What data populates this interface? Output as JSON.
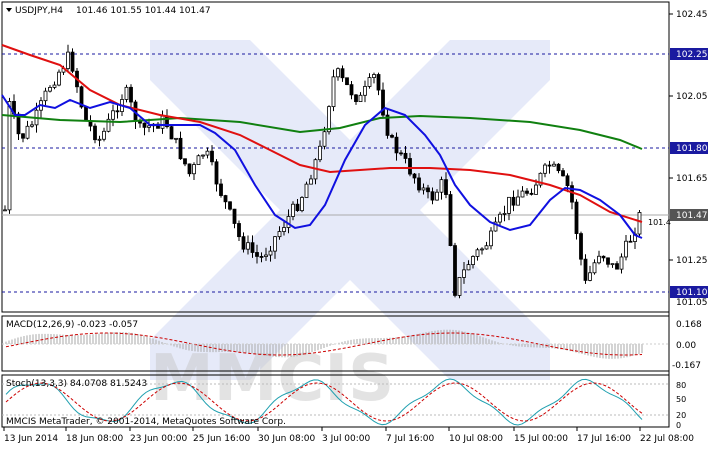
{
  "header": {
    "symbol_label": "USDJPY,H4",
    "ohlc": "101.46 101.55 101.44 101.47"
  },
  "price_axis": {
    "ticks": [
      "102.45",
      "102.05",
      "101.65",
      "101.25",
      "101.05"
    ],
    "markers": [
      {
        "label": "102.25",
        "color": "#1a1aa0"
      },
      {
        "label": "101.80",
        "color": "#1a1aa0"
      },
      {
        "label": "101.47",
        "color": "#555555"
      },
      {
        "label": "101.10",
        "color": "#1a1aa0"
      }
    ],
    "partial_tick": "101.4",
    "bottom_label": "101.05"
  },
  "macd": {
    "title": "MACD(12,26,9) -0.023 -0.057",
    "ticks": [
      "0.168",
      "0.00",
      "-0.167"
    ]
  },
  "stoch": {
    "title": "Stoch(13,3,3) 84.0708 81.5243",
    "ticks": [
      "80",
      "50",
      "20",
      "0"
    ]
  },
  "footer": {
    "copyright": "MMCIS MetaTrader, © 2001-2014, MetaQuotes Software Corp."
  },
  "time_axis": {
    "labels": [
      "13 Jun 2014",
      "18 Jun 08:00",
      "23 Jun 00:00",
      "25 Jun 16:00",
      "30 Jun 08:00",
      "3 Jul 00:00",
      "7 Jul 16:00",
      "10 Jul 08:00",
      "15 Jul 00:00",
      "17 Jul 16:00",
      "22 Jul 08:00"
    ]
  },
  "watermark": {
    "text": "MMCIS"
  },
  "colors": {
    "candle": "#000000",
    "ma_red": "#e01010",
    "ma_blue": "#1010e0",
    "ma_green": "#108010",
    "level_line": "#1a1aa0",
    "macd_signal": "#cc0000",
    "stoch_main": "#20a0b0",
    "stoch_signal": "#cc0000"
  }
}
